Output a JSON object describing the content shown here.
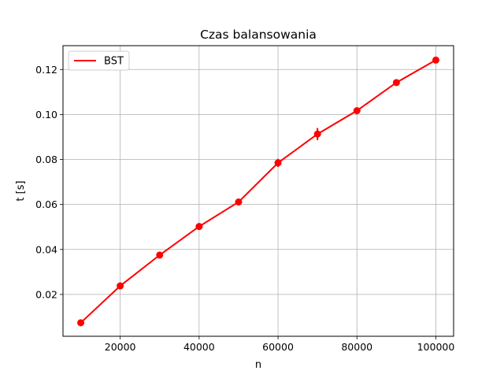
{
  "chart_data": {
    "type": "line",
    "title": "Czas balansowania",
    "xlabel": "n",
    "ylabel": "t [s]",
    "x": [
      10000,
      20000,
      30000,
      40000,
      50000,
      60000,
      70000,
      80000,
      90000,
      100000
    ],
    "series": [
      {
        "name": "BST",
        "color": "#ff0000",
        "values": [
          0.0074,
          0.0238,
          0.0375,
          0.0502,
          0.0611,
          0.0785,
          0.0913,
          0.1017,
          0.1142,
          0.1242
        ],
        "errors": [
          0.0008,
          0.001,
          0.0008,
          0.0008,
          0.0007,
          0.0018,
          0.0027,
          0.0009,
          0.001,
          0.0008
        ]
      }
    ],
    "xlim": [
      5500,
      104500
    ],
    "ylim": [
      0.0014,
      0.1306
    ],
    "xticks": [
      20000,
      40000,
      60000,
      80000,
      100000
    ],
    "xtick_labels": [
      "20000",
      "40000",
      "60000",
      "80000",
      "100000"
    ],
    "yticks": [
      0.02,
      0.04,
      0.06,
      0.08,
      0.1,
      0.12
    ],
    "ytick_labels": [
      "0.02",
      "0.04",
      "0.06",
      "0.08",
      "0.10",
      "0.12"
    ],
    "grid": true,
    "legend": "upper-left"
  }
}
